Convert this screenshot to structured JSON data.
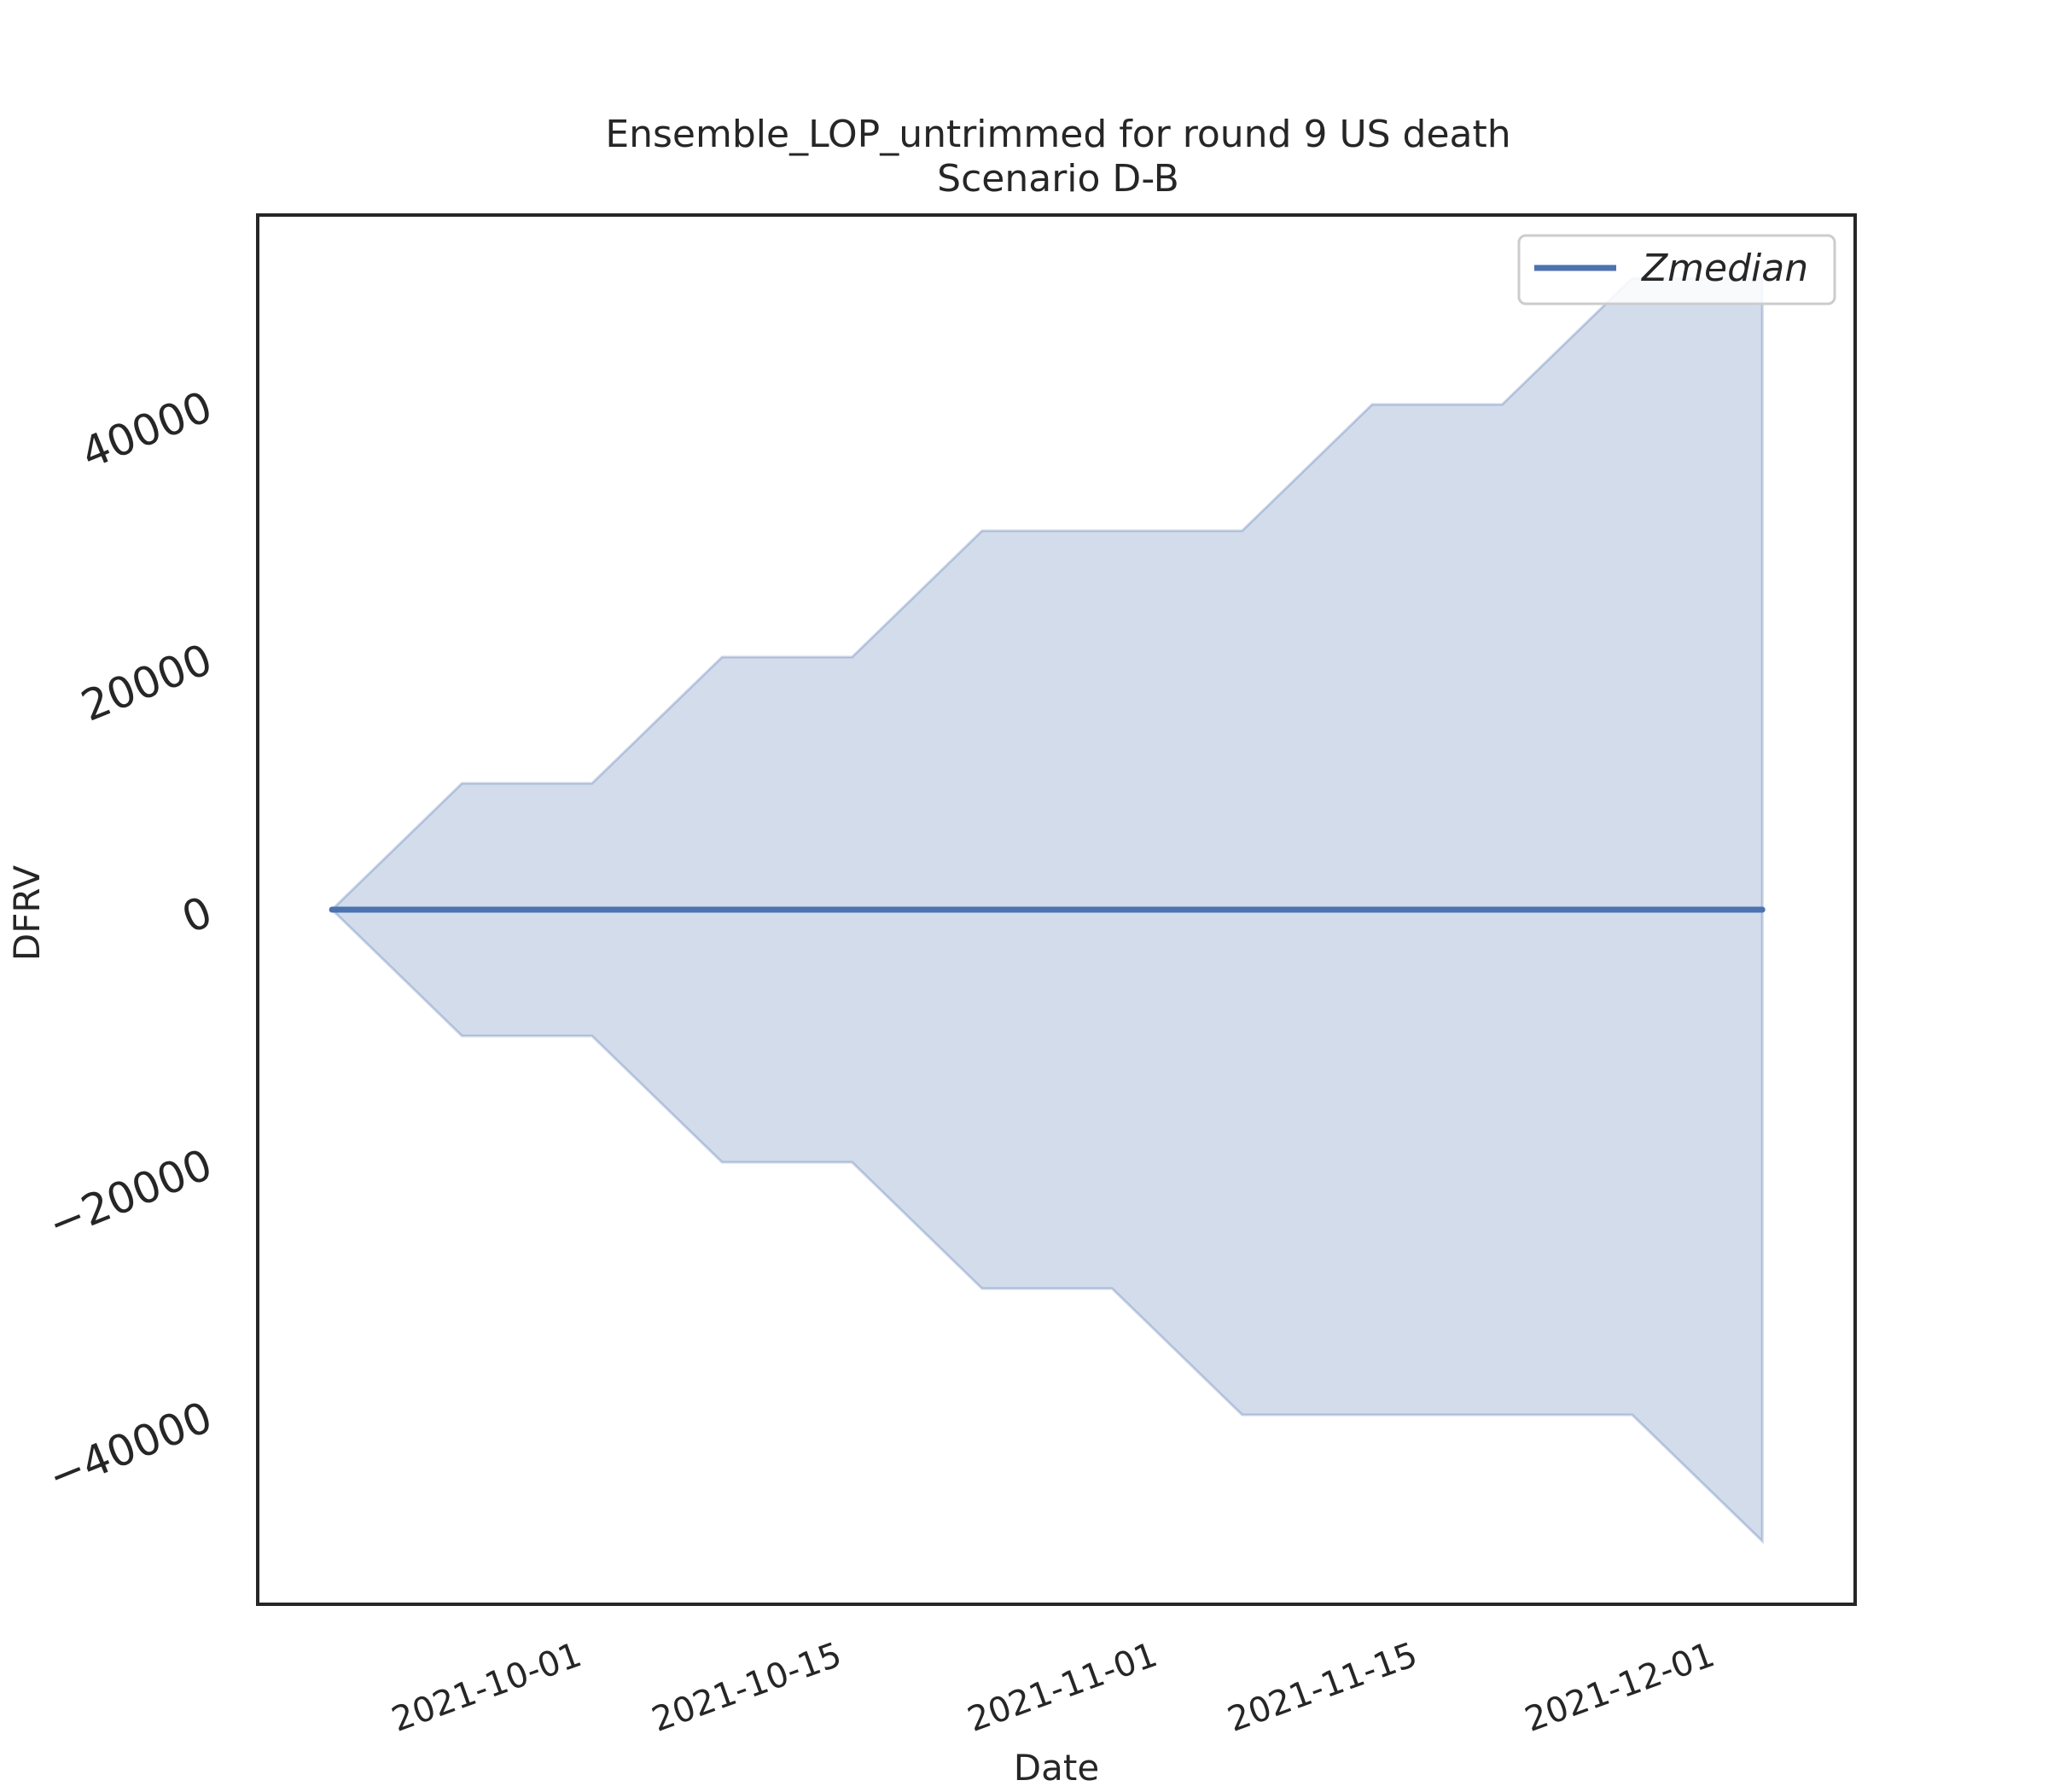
{
  "chart_data": {
    "type": "area",
    "title": "Ensemble_LOP_untrimmed for round 9 US death",
    "subtitle": "Scenario D-B",
    "xlabel": "Date",
    "ylabel": "DFRV",
    "x": [
      "2021-09-18",
      "2021-09-25",
      "2021-10-02",
      "2021-10-09",
      "2021-10-16",
      "2021-10-23",
      "2021-10-30",
      "2021-11-06",
      "2021-11-13",
      "2021-11-20",
      "2021-11-27",
      "2021-12-04"
    ],
    "series": [
      {
        "name": "Zmedian",
        "kind": "line",
        "color": "#4c72b0",
        "values": [
          0,
          0,
          0,
          0,
          0,
          0,
          0,
          0,
          0,
          0,
          0,
          0
        ]
      }
    ],
    "band": {
      "color": "#4c72b0",
      "opacity": 0.25,
      "upper": [
        0,
        10000,
        10000,
        20000,
        20000,
        30000,
        30000,
        30000,
        40000,
        40000,
        50000,
        50000
      ],
      "lower": [
        0,
        -10000,
        -10000,
        -20000,
        -20000,
        -30000,
        -30000,
        -40000,
        -40000,
        -40000,
        -40000,
        -50000
      ]
    },
    "x_ticks": [
      "2021-10-01",
      "2021-10-15",
      "2021-11-01",
      "2021-11-15",
      "2021-12-01"
    ],
    "y_ticks": [
      -40000,
      -20000,
      0,
      20000,
      40000
    ],
    "y_tick_labels": [
      "−40000",
      "−20000",
      "0",
      "20000",
      "40000"
    ],
    "xlim": [
      "2021-09-14",
      "2021-12-09"
    ],
    "ylim": [
      -55000,
      55000
    ],
    "grid": false,
    "legend": {
      "position": "top-right",
      "entries": [
        "Zmedian"
      ]
    }
  }
}
